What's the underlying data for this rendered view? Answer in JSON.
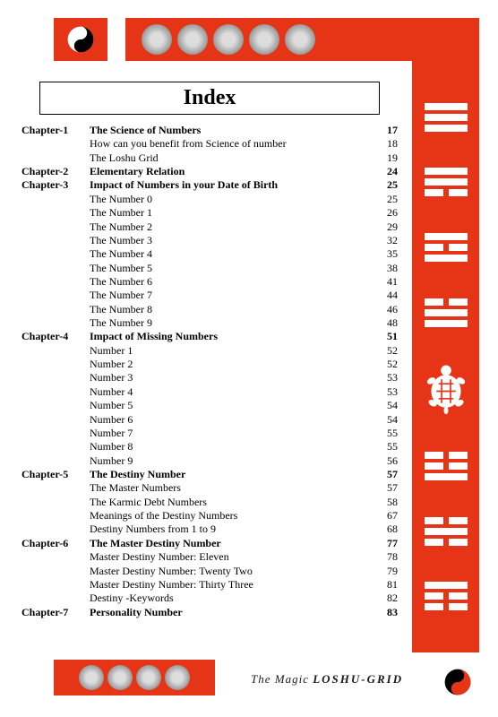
{
  "colors": {
    "accent": "#e63416",
    "page_bg": "#ffffff",
    "text": "#000000",
    "emblem_gradient": [
      "#dddddd",
      "#999999",
      "#666666"
    ],
    "trigram_line": "#ffffff"
  },
  "header": {
    "title": "Index",
    "title_fontsize": 24,
    "title_box_border": "#000000"
  },
  "trigrams": [
    [
      true,
      true,
      true
    ],
    [
      true,
      true,
      false
    ],
    [
      true,
      false,
      true
    ],
    [
      false,
      true,
      true
    ],
    [
      false,
      false,
      true
    ],
    [
      false,
      true,
      false
    ],
    [
      true,
      false,
      false
    ]
  ],
  "top_emblems": [
    "dragon",
    "phoenix",
    "tortoise",
    "tiger",
    "globe"
  ],
  "bottom_emblems": [
    "dragon",
    "phoenix",
    "tortoise",
    "tiger"
  ],
  "footer": {
    "text_pre": "The Magic ",
    "text_strong": "LOSHU-GRID"
  },
  "toc": [
    {
      "chapter": "Chapter-1",
      "title": "The Science of Numbers",
      "page": "17",
      "bold": true
    },
    {
      "chapter": "",
      "title": "How can you benefit from Science of number",
      "page": "18",
      "bold": false
    },
    {
      "chapter": "",
      "title": "The Loshu Grid",
      "page": "19",
      "bold": false
    },
    {
      "chapter": "Chapter-2",
      "title": "Elementary Relation",
      "page": "24",
      "bold": true
    },
    {
      "chapter": "Chapter-3",
      "title": "Impact of Numbers in your Date of Birth",
      "page": "25",
      "bold": true
    },
    {
      "chapter": "",
      "title": "The Number 0",
      "page": "25",
      "bold": false
    },
    {
      "chapter": "",
      "title": "The Number 1",
      "page": "26",
      "bold": false
    },
    {
      "chapter": "",
      "title": "The Number 2",
      "page": "29",
      "bold": false
    },
    {
      "chapter": "",
      "title": "The Number 3",
      "page": "32",
      "bold": false
    },
    {
      "chapter": "",
      "title": "The Number 4",
      "page": "35",
      "bold": false
    },
    {
      "chapter": "",
      "title": "The Number 5",
      "page": "38",
      "bold": false
    },
    {
      "chapter": "",
      "title": "The Number 6",
      "page": "41",
      "bold": false
    },
    {
      "chapter": "",
      "title": "The Number 7",
      "page": "44",
      "bold": false
    },
    {
      "chapter": "",
      "title": "The Number 8",
      "page": "46",
      "bold": false
    },
    {
      "chapter": "",
      "title": "The Number 9",
      "page": "48",
      "bold": false
    },
    {
      "chapter": "Chapter-4",
      "title": "Impact of Missing Numbers",
      "page": "51",
      "bold": true
    },
    {
      "chapter": "",
      "title": "Number 1",
      "page": "52",
      "bold": false
    },
    {
      "chapter": "",
      "title": "Number 2",
      "page": "52",
      "bold": false
    },
    {
      "chapter": "",
      "title": "Number 3",
      "page": "53",
      "bold": false
    },
    {
      "chapter": "",
      "title": "Number 4",
      "page": "53",
      "bold": false
    },
    {
      "chapter": "",
      "title": "Number 5",
      "page": "54",
      "bold": false
    },
    {
      "chapter": "",
      "title": "Number 6",
      "page": "54",
      "bold": false
    },
    {
      "chapter": "",
      "title": "Number 7",
      "page": "55",
      "bold": false
    },
    {
      "chapter": "",
      "title": "Number 8",
      "page": "55",
      "bold": false
    },
    {
      "chapter": "",
      "title": "Number 9",
      "page": "56",
      "bold": false
    },
    {
      "chapter": "Chapter-5",
      "title": "The Destiny Number",
      "page": "57",
      "bold": true
    },
    {
      "chapter": "",
      "title": "The Master Numbers",
      "page": "57",
      "bold": false
    },
    {
      "chapter": "",
      "title": "The Karmic Debt Numbers",
      "page": "58",
      "bold": false
    },
    {
      "chapter": "",
      "title": "Meanings of the Destiny Numbers",
      "page": "67",
      "bold": false
    },
    {
      "chapter": "",
      "title": "Destiny Numbers from  1 to 9",
      "page": "68",
      "bold": false
    },
    {
      "chapter": "Chapter-6",
      "title": "The Master Destiny Number",
      "page": "77",
      "bold": true
    },
    {
      "chapter": "",
      "title": "Master Destiny Number: Eleven",
      "page": "78",
      "bold": false
    },
    {
      "chapter": "",
      "title": "Master Destiny Number: Twenty Two",
      "page": "79",
      "bold": false
    },
    {
      "chapter": "",
      "title": "Master Destiny Number: Thirty Three",
      "page": "81",
      "bold": false
    },
    {
      "chapter": "",
      "title": "Destiny -Keywords",
      "page": "82",
      "bold": false
    },
    {
      "chapter": "Chapter-7",
      "title": "Personality Number",
      "page": "83",
      "bold": true
    }
  ]
}
